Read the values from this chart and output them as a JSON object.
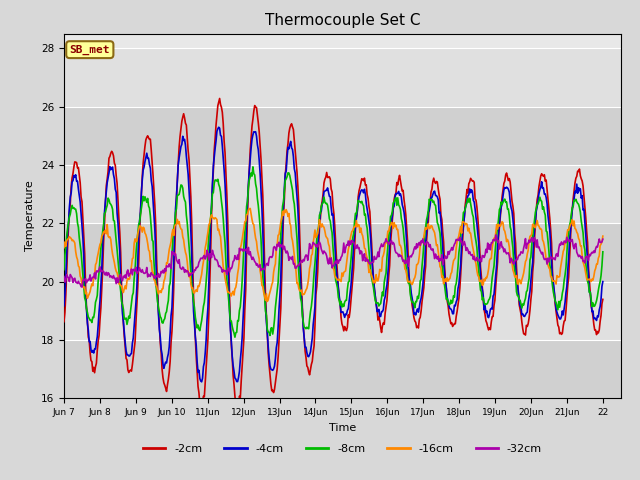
{
  "title": "Thermocouple Set C",
  "xlabel": "Time",
  "ylabel": "Temperature",
  "ylim": [
    16,
    28.5
  ],
  "xlim": [
    0,
    15.5
  ],
  "fig_width": 6.4,
  "fig_height": 4.8,
  "dpi": 100,
  "bg_color": "#d8d8d8",
  "plot_bg_color": "#e8e8e8",
  "annotation_text": "SB_met",
  "annotation_bg": "#ffff99",
  "annotation_border": "#8B6914",
  "annotation_text_color": "#8B0000",
  "x_tick_labels": [
    "Jun 7",
    "Jun 8",
    "Jun 9",
    "Jun 10",
    "11Jun",
    "12Jun",
    "13Jun",
    "14Jun",
    "15Jun",
    "16Jun",
    "17Jun",
    "18Jun",
    "19Jun",
    "20Jun",
    "21Jun",
    "22"
  ],
  "x_tick_positions": [
    0,
    1,
    2,
    3,
    4,
    5,
    6,
    7,
    8,
    9,
    10,
    11,
    12,
    13,
    14,
    15
  ],
  "y_ticks": [
    16,
    18,
    20,
    22,
    24,
    26,
    28
  ],
  "legend_labels": [
    "-2cm",
    "-4cm",
    "-8cm",
    "-16cm",
    "-32cm"
  ],
  "legend_colors": [
    "#cc0000",
    "#0000cc",
    "#00bb00",
    "#ff8800",
    "#aa00aa"
  ],
  "grid_color": "#ffffff",
  "band_colors": [
    "#d0d0d0",
    "#e0e0e0"
  ]
}
